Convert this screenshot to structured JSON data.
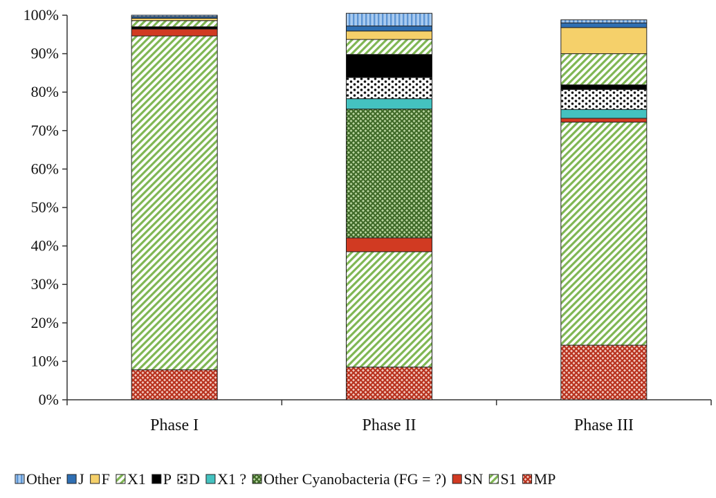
{
  "chart_data": {
    "type": "bar",
    "stacked": true,
    "percent": true,
    "categories": [
      "Phase I",
      "Phase II",
      "Phase III"
    ],
    "yticks": [
      "0%",
      "10%",
      "20%",
      "30%",
      "40%",
      "50%",
      "60%",
      "70%",
      "80%",
      "90%",
      "100%"
    ],
    "ylim": [
      0,
      100
    ],
    "grid": false,
    "legend_position": "bottom",
    "series": [
      {
        "name": "MP",
        "values": [
          7.8,
          8.5,
          14.2
        ],
        "color": "#c0392b",
        "pattern": "crosshatch"
      },
      {
        "name": "S1",
        "values": [
          86.8,
          30.0,
          58.0
        ],
        "color": "#8cbf5a",
        "pattern": "diag"
      },
      {
        "name": "SN",
        "values": [
          1.8,
          3.6,
          1.0
        ],
        "color": "#d13a22",
        "pattern": "solid"
      },
      {
        "name": "Other Cyanobacteria (FG = ?)",
        "values": [
          0,
          33.5,
          0
        ],
        "color": "#4e7a32",
        "pattern": "crosshatch"
      },
      {
        "name": "X1 ?",
        "values": [
          0,
          2.7,
          2.3
        ],
        "color": "#44c2c0",
        "pattern": "solid"
      },
      {
        "name": "D",
        "values": [
          0,
          5.5,
          5.2
        ],
        "color": "#ffffff",
        "pattern": "dots"
      },
      {
        "name": "P",
        "values": [
          0.6,
          6.0,
          1.2
        ],
        "color": "#000000",
        "pattern": "solid"
      },
      {
        "name": "X1",
        "values": [
          1.6,
          3.9,
          8.1
        ],
        "color": "#8cbf5a",
        "pattern": "diag"
      },
      {
        "name": "F",
        "values": [
          0.6,
          2.2,
          6.8
        ],
        "color": "#f5d06a",
        "pattern": "solid"
      },
      {
        "name": "J",
        "values": [
          0.4,
          1.3,
          1.2
        ],
        "color": "#2f6fb3",
        "pattern": "solid"
      },
      {
        "name": "Other",
        "values": [
          0.4,
          3.3,
          0.8
        ],
        "color": "#8fb8e8",
        "pattern": "vlines"
      }
    ],
    "legend_order": [
      "Other",
      "J",
      "F",
      "X1",
      "P",
      "D",
      "X1 ?",
      "Other Cyanobacteria (FG = ?)",
      "SN",
      "S1",
      "MP"
    ]
  }
}
